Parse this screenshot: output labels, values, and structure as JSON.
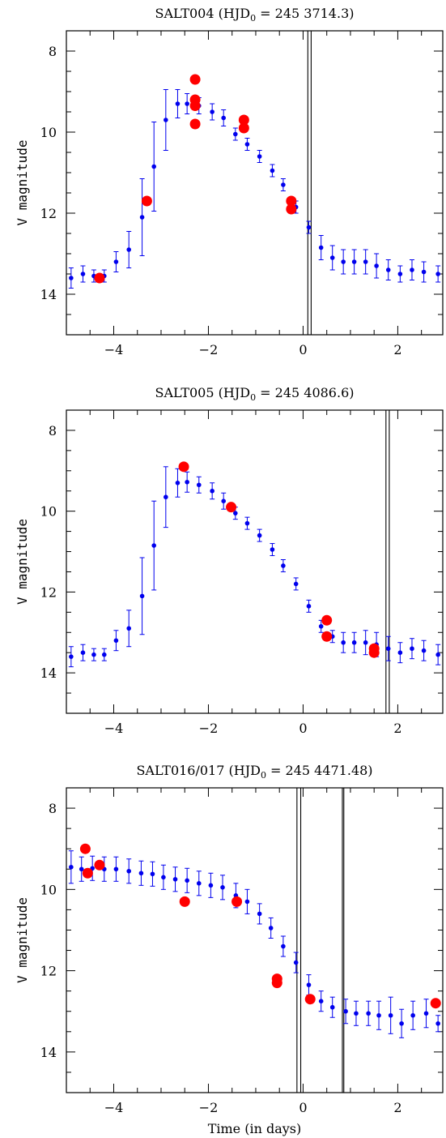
{
  "figure": {
    "x_axis_label": "Time (in days)",
    "y_axis_label": "V magnitude"
  },
  "chart_data": [
    {
      "type": "scatter",
      "title_prefix": "SALT004 (HJD",
      "title_sub": "0",
      "title_suffix": " = 245 3714.3)",
      "xlabel": "",
      "ylabel": "V magnitude",
      "xlim": [
        -5.0,
        2.95
      ],
      "ylim": [
        15.0,
        7.5
      ],
      "y_inverted": true,
      "x_ticks": [
        -4,
        -2,
        0,
        2
      ],
      "y_ticks": [
        8,
        10,
        12,
        14
      ],
      "vertical_lines": [
        0.1,
        0.17
      ],
      "series": [
        {
          "color": "#0000ee",
          "style": "small dots with error bars",
          "points": [
            [
              -4.9,
              13.6,
              0.25
            ],
            [
              -4.65,
              13.5,
              0.2
            ],
            [
              -4.42,
              13.55,
              0.15
            ],
            [
              -4.2,
              13.55,
              0.15
            ],
            [
              -3.95,
              13.2,
              0.25
            ],
            [
              -3.68,
              12.9,
              0.45
            ],
            [
              -3.4,
              12.1,
              0.95
            ],
            [
              -3.15,
              10.85,
              1.1
            ],
            [
              -2.9,
              9.7,
              0.75
            ],
            [
              -2.65,
              9.3,
              0.35
            ],
            [
              -2.45,
              9.3,
              0.25
            ],
            [
              -2.2,
              9.35,
              0.2
            ],
            [
              -1.92,
              9.5,
              0.2
            ],
            [
              -1.68,
              9.65,
              0.2
            ],
            [
              -1.43,
              10.05,
              0.15
            ],
            [
              -1.18,
              10.3,
              0.15
            ],
            [
              -0.92,
              10.6,
              0.15
            ],
            [
              -0.65,
              10.95,
              0.15
            ],
            [
              -0.42,
              11.3,
              0.15
            ],
            [
              -0.15,
              11.85,
              0.15
            ],
            [
              0.12,
              12.35,
              0.15
            ],
            [
              0.38,
              12.85,
              0.3
            ],
            [
              0.62,
              13.1,
              0.3
            ],
            [
              0.85,
              13.2,
              0.3
            ],
            [
              1.08,
              13.2,
              0.3
            ],
            [
              1.32,
              13.2,
              0.3
            ],
            [
              1.55,
              13.3,
              0.3
            ],
            [
              1.8,
              13.4,
              0.25
            ],
            [
              2.05,
              13.5,
              0.2
            ],
            [
              2.3,
              13.4,
              0.25
            ],
            [
              2.55,
              13.45,
              0.25
            ],
            [
              2.85,
              13.5,
              0.2
            ]
          ]
        },
        {
          "color": "#ff0000",
          "style": "large filled circles",
          "points": [
            [
              -4.3,
              13.6
            ],
            [
              -3.3,
              11.7
            ],
            [
              -2.28,
              8.7
            ],
            [
              -2.28,
              9.2
            ],
            [
              -2.28,
              9.35
            ],
            [
              -2.28,
              9.8
            ],
            [
              -1.25,
              9.7
            ],
            [
              -1.25,
              9.9
            ],
            [
              -0.25,
              11.7
            ],
            [
              -0.25,
              11.9
            ]
          ]
        }
      ]
    },
    {
      "type": "scatter",
      "title_prefix": "SALT005 (HJD",
      "title_sub": "0",
      "title_suffix": " = 245 4086.6)",
      "xlabel": "",
      "ylabel": "V magnitude",
      "xlim": [
        -5.0,
        2.95
      ],
      "ylim": [
        15.0,
        7.5
      ],
      "y_inverted": true,
      "x_ticks": [
        -4,
        -2,
        0,
        2
      ],
      "y_ticks": [
        8,
        10,
        12,
        14
      ],
      "vertical_lines": [
        1.75,
        1.82
      ],
      "series": [
        {
          "color": "#0000ee",
          "style": "small dots with error bars",
          "points": [
            [
              -4.9,
              13.6,
              0.25
            ],
            [
              -4.65,
              13.5,
              0.2
            ],
            [
              -4.42,
              13.55,
              0.15
            ],
            [
              -4.2,
              13.55,
              0.15
            ],
            [
              -3.95,
              13.2,
              0.25
            ],
            [
              -3.68,
              12.9,
              0.45
            ],
            [
              -3.4,
              12.1,
              0.95
            ],
            [
              -3.15,
              10.85,
              1.1
            ],
            [
              -2.9,
              9.65,
              0.75
            ],
            [
              -2.65,
              9.3,
              0.35
            ],
            [
              -2.45,
              9.28,
              0.25
            ],
            [
              -2.2,
              9.35,
              0.2
            ],
            [
              -1.92,
              9.5,
              0.2
            ],
            [
              -1.68,
              9.75,
              0.2
            ],
            [
              -1.43,
              10.05,
              0.15
            ],
            [
              -1.18,
              10.3,
              0.15
            ],
            [
              -0.92,
              10.6,
              0.15
            ],
            [
              -0.65,
              10.95,
              0.15
            ],
            [
              -0.42,
              11.35,
              0.15
            ],
            [
              -0.15,
              11.8,
              0.15
            ],
            [
              0.12,
              12.35,
              0.15
            ],
            [
              0.38,
              12.85,
              0.15
            ],
            [
              0.62,
              13.1,
              0.15
            ],
            [
              0.85,
              13.25,
              0.25
            ],
            [
              1.08,
              13.25,
              0.25
            ],
            [
              1.32,
              13.25,
              0.3
            ],
            [
              1.55,
              13.3,
              0.3
            ],
            [
              1.8,
              13.4,
              0.3
            ],
            [
              2.05,
              13.5,
              0.25
            ],
            [
              2.3,
              13.4,
              0.25
            ],
            [
              2.55,
              13.45,
              0.25
            ],
            [
              2.85,
              13.55,
              0.25
            ]
          ]
        },
        {
          "color": "#ff0000",
          "style": "large filled circles",
          "points": [
            [
              -2.52,
              8.9
            ],
            [
              -1.52,
              9.9
            ],
            [
              0.5,
              12.7
            ],
            [
              0.5,
              13.1
            ],
            [
              1.5,
              13.4
            ],
            [
              1.5,
              13.5
            ]
          ]
        }
      ]
    },
    {
      "type": "scatter",
      "title_prefix": "SALT016/017 (HJD",
      "title_sub": "0",
      "title_suffix": " = 245 4471.48)",
      "xlabel": "Time (in days)",
      "ylabel": "V magnitude",
      "xlim": [
        -5.0,
        2.95
      ],
      "ylim": [
        15.0,
        7.5
      ],
      "y_inverted": true,
      "x_ticks": [
        -4,
        -2,
        0,
        2
      ],
      "y_ticks": [
        8,
        10,
        12,
        14
      ],
      "vertical_lines": [
        -0.13,
        -0.05,
        0.83,
        0.86
      ],
      "series": [
        {
          "color": "#0000ee",
          "style": "small dots with error bars",
          "points": [
            [
              -4.9,
              9.45,
              0.4
            ],
            [
              -4.68,
              9.5,
              0.3
            ],
            [
              -4.45,
              9.48,
              0.3
            ],
            [
              -4.2,
              9.5,
              0.3
            ],
            [
              -3.95,
              9.5,
              0.3
            ],
            [
              -3.68,
              9.55,
              0.3
            ],
            [
              -3.42,
              9.6,
              0.3
            ],
            [
              -3.18,
              9.62,
              0.3
            ],
            [
              -2.95,
              9.7,
              0.3
            ],
            [
              -2.7,
              9.75,
              0.3
            ],
            [
              -2.45,
              9.78,
              0.3
            ],
            [
              -2.2,
              9.85,
              0.3
            ],
            [
              -1.95,
              9.9,
              0.3
            ],
            [
              -1.7,
              9.95,
              0.3
            ],
            [
              -1.42,
              10.15,
              0.3
            ],
            [
              -1.18,
              10.3,
              0.3
            ],
            [
              -0.92,
              10.6,
              0.25
            ],
            [
              -0.68,
              10.95,
              0.25
            ],
            [
              -0.42,
              11.4,
              0.25
            ],
            [
              -0.15,
              11.8,
              0.25
            ],
            [
              0.12,
              12.35,
              0.25
            ],
            [
              0.38,
              12.75,
              0.25
            ],
            [
              0.62,
              12.9,
              0.25
            ],
            [
              0.9,
              13.0,
              0.3
            ],
            [
              1.12,
              13.05,
              0.3
            ],
            [
              1.38,
              13.05,
              0.3
            ],
            [
              1.6,
              13.1,
              0.35
            ],
            [
              1.85,
              13.1,
              0.45
            ],
            [
              2.08,
              13.3,
              0.35
            ],
            [
              2.32,
              13.1,
              0.35
            ],
            [
              2.6,
              13.05,
              0.35
            ],
            [
              2.85,
              13.3,
              0.2
            ]
          ]
        },
        {
          "color": "#ff0000",
          "style": "large filled circles",
          "points": [
            [
              -4.6,
              9.0
            ],
            [
              -4.55,
              9.6
            ],
            [
              -4.3,
              9.4
            ],
            [
              -2.5,
              10.3
            ],
            [
              -1.4,
              10.3
            ],
            [
              -0.55,
              12.2
            ],
            [
              -0.55,
              12.3
            ],
            [
              0.15,
              12.7
            ],
            [
              2.8,
              12.8
            ]
          ]
        }
      ]
    }
  ]
}
